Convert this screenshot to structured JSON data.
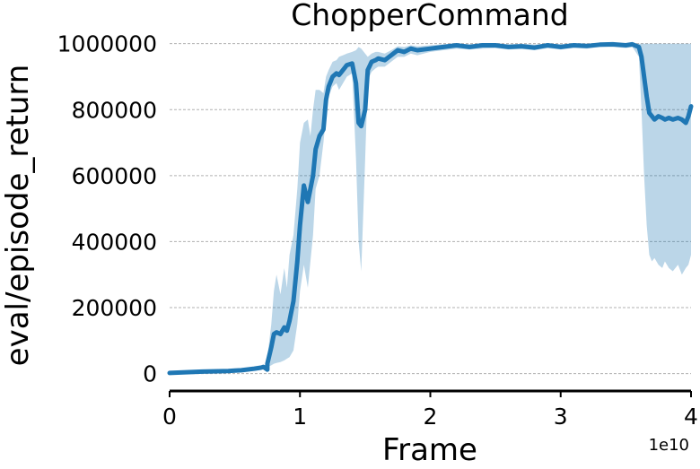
{
  "chart_data": {
    "type": "line",
    "title": "ChopperCommand",
    "xlabel": "Frame",
    "ylabel": "eval/episode_return",
    "x_offset_label": "1e10",
    "xlim": [
      0,
      4
    ],
    "ylim": [
      -50000,
      1010000
    ],
    "x_ticks": [
      0,
      1,
      2,
      3,
      4
    ],
    "x_tick_labels": [
      "0",
      "1",
      "2",
      "3",
      "4"
    ],
    "y_ticks": [
      0,
      200000,
      400000,
      600000,
      800000,
      1000000
    ],
    "y_tick_labels": [
      "0",
      "200000",
      "400000",
      "600000",
      "800000",
      "1000000"
    ],
    "grid": "horizontal-dashed",
    "line_color": "#1f77b4",
    "band_color": "#1f77b4",
    "series": [
      {
        "x": [
          0,
          0.25,
          0.5,
          0.75,
          0.45,
          0.55,
          0.65,
          0.7,
          0.72,
          0.75,
          0.78,
          0.8,
          0.82,
          0.85,
          0.88,
          0.9,
          0.92,
          0.95,
          0.98,
          1.0,
          1.03,
          1.06,
          1.08,
          1.1,
          1.12,
          1.15,
          1.18,
          1.2,
          1.22,
          1.25,
          1.28,
          1.3,
          1.33,
          1.36,
          1.4,
          1.43,
          1.45,
          1.47,
          1.5,
          1.52,
          1.55,
          1.58,
          1.6,
          1.65,
          1.7,
          1.75,
          1.8,
          1.85,
          1.9,
          2.0,
          2.1,
          2.2,
          2.3,
          2.4,
          2.5,
          2.6,
          2.7,
          2.8,
          2.9,
          3.0,
          3.1,
          3.2,
          3.3,
          3.4,
          3.5,
          3.55,
          3.6,
          3.62,
          3.64,
          3.66,
          3.68,
          3.7,
          3.72,
          3.75,
          3.78,
          3.8,
          3.83,
          3.86,
          3.9,
          3.93,
          3.96,
          3.98,
          4.0
        ],
        "mean": [
          2000,
          6000,
          9000,
          12000,
          8000,
          10000,
          15000,
          18000,
          20000,
          30000,
          80000,
          120000,
          125000,
          120000,
          140000,
          130000,
          160000,
          220000,
          340000,
          450000,
          570000,
          520000,
          560000,
          600000,
          680000,
          720000,
          740000,
          830000,
          870000,
          900000,
          910000,
          905000,
          920000,
          935000,
          940000,
          880000,
          760000,
          750000,
          800000,
          920000,
          945000,
          950000,
          955000,
          950000,
          965000,
          980000,
          975000,
          985000,
          980000,
          985000,
          990000,
          995000,
          990000,
          995000,
          995000,
          990000,
          992000,
          988000,
          995000,
          990000,
          995000,
          993000,
          997000,
          998000,
          995000,
          998000,
          990000,
          960000,
          900000,
          840000,
          790000,
          780000,
          770000,
          780000,
          775000,
          770000,
          775000,
          770000,
          775000,
          770000,
          760000,
          780000,
          810000
        ],
        "lower": [
          0,
          3000,
          6000,
          8000,
          5000,
          7000,
          10000,
          12000,
          13000,
          20000,
          25000,
          30000,
          32000,
          35000,
          40000,
          45000,
          50000,
          70000,
          150000,
          250000,
          330000,
          260000,
          340000,
          420000,
          560000,
          600000,
          700000,
          780000,
          840000,
          870000,
          880000,
          860000,
          880000,
          900000,
          910000,
          650000,
          400000,
          310000,
          650000,
          890000,
          915000,
          925000,
          930000,
          930000,
          945000,
          960000,
          960000,
          970000,
          965000,
          975000,
          980000,
          985000,
          982000,
          985000,
          986000,
          982000,
          984000,
          980000,
          986000,
          982000,
          987000,
          985000,
          990000,
          990000,
          987000,
          990000,
          960000,
          800000,
          600000,
          450000,
          360000,
          340000,
          350000,
          330000,
          320000,
          340000,
          320000,
          310000,
          330000,
          300000,
          320000,
          330000,
          360000
        ],
        "upper": [
          4000,
          9000,
          12000,
          16000,
          11000,
          13000,
          20000,
          24000,
          28000,
          50000,
          150000,
          250000,
          300000,
          240000,
          320000,
          260000,
          360000,
          420000,
          560000,
          700000,
          760000,
          770000,
          720000,
          800000,
          860000,
          860000,
          850000,
          900000,
          920000,
          945000,
          950000,
          960000,
          965000,
          970000,
          975000,
          980000,
          990000,
          985000,
          970000,
          960000,
          970000,
          975000,
          975000,
          970000,
          980000,
          992000,
          990000,
          995000,
          992000,
          995000,
          998000,
          1000000,
          998000,
          1000000,
          1000000,
          998000,
          1000000,
          997000,
          1000000,
          998000,
          1000000,
          1000000,
          1000000,
          1000000,
          1000000,
          1000000,
          1000000,
          1000000,
          1000000,
          1000000,
          1000000,
          1000000,
          1000000,
          1000000,
          1000000,
          1000000,
          1000000,
          1000000,
          1000000,
          1000000,
          1000000,
          1000000,
          1000000
        ]
      }
    ]
  }
}
